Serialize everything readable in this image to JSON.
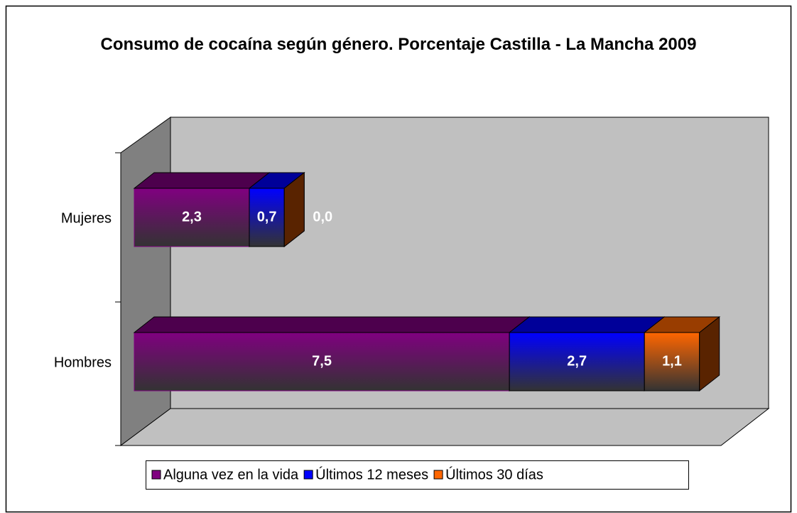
{
  "chart_data": {
    "type": "bar3d_stacked_horizontal",
    "title": "Consumo de cocaína según género. Porcentaje Castilla - La Mancha 2009",
    "categories": [
      "Mujeres",
      "Hombres"
    ],
    "series": [
      {
        "name": "Alguna vez en la vida",
        "color": "#800080",
        "values": [
          2.3,
          7.5
        ],
        "value_labels": [
          "2,3",
          "7,5"
        ]
      },
      {
        "name": "Últimos 12 meses",
        "color": "#0000ff",
        "values": [
          0.7,
          2.7
        ],
        "value_labels": [
          "0,7",
          "2,7"
        ]
      },
      {
        "name": "Últimos 30 días",
        "color": "#ff6600",
        "values": [
          0.0,
          1.1
        ],
        "value_labels": [
          "0,0",
          "1,1"
        ]
      }
    ],
    "xlim": [
      0,
      12
    ]
  }
}
